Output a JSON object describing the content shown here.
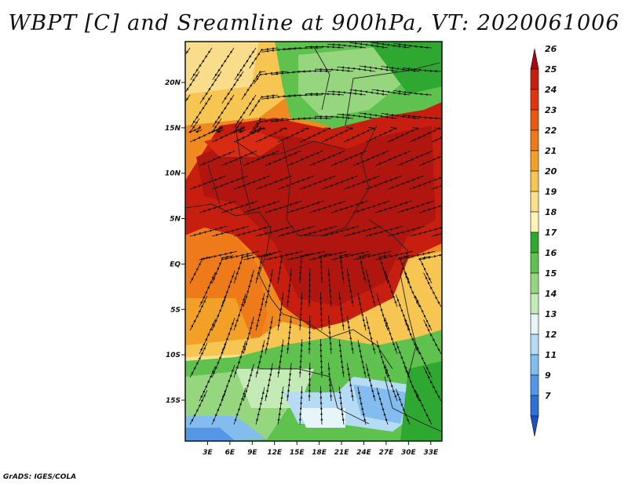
{
  "title": "WBPT [C] and Sreamline at 900hPa, VT: 2020061006",
  "footer": "GrADS: IGES/COLA",
  "map": {
    "lat_labels": [
      "20N",
      "15N",
      "10N",
      "5N",
      "EQ",
      "5S",
      "10S",
      "15S"
    ],
    "lat_values": [
      20,
      15,
      10,
      5,
      0,
      -5,
      -10,
      -15
    ],
    "lon_labels": [
      "3E",
      "6E",
      "9E",
      "12E",
      "15E",
      "18E",
      "21E",
      "24E",
      "27E",
      "30E",
      "33E"
    ],
    "lon_values": [
      3,
      6,
      9,
      12,
      15,
      18,
      21,
      24,
      27,
      30,
      33
    ],
    "lon_range": [
      0,
      34.5
    ],
    "lat_range": [
      -19.5,
      24.5
    ]
  },
  "colorbar": {
    "labels": [
      "26",
      "25",
      "24",
      "23",
      "22",
      "21",
      "20",
      "19",
      "18",
      "17",
      "16",
      "15",
      "14",
      "13",
      "12",
      "11",
      "9",
      "7"
    ],
    "colors": [
      "#a50a12",
      "#c81e0f",
      "#e0360e",
      "#e95a10",
      "#ee7a1a",
      "#f3a028",
      "#f6c552",
      "#f9e08a",
      "#fdf4b8",
      "#2fa832",
      "#5fc24e",
      "#95d67f",
      "#c4ebb6",
      "#e6f5f7",
      "#b6dcf5",
      "#83bcee",
      "#5597e6",
      "#2f6fd8",
      "#1c4fc7"
    ]
  }
}
